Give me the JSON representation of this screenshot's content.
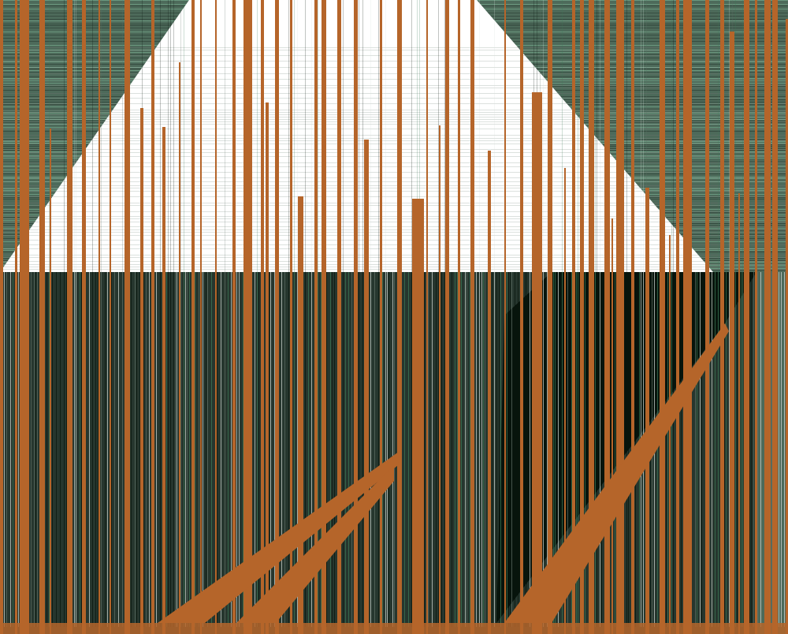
{
  "palette": {
    "orange": "#b5652a",
    "green": "#3d7a58",
    "green_light": "#7fb596",
    "dark": "#07140c",
    "white": "#ffffff",
    "gray": "#5f6f66"
  }
}
